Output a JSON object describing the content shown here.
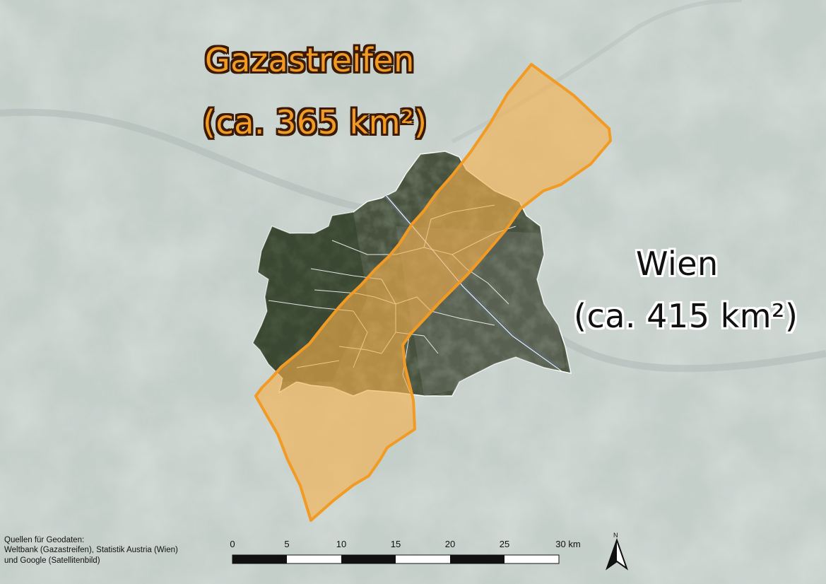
{
  "labels": {
    "gaza_name": "Gazastreifen",
    "gaza_area": "(ca. 365 km²)",
    "wien_name": "Wien",
    "wien_area": "(ca. 415 km²)"
  },
  "sources": {
    "line1": "Quellen für Geodaten:",
    "line2": "Weltbank (Gazastreifen), Statistik Austria (Wien)",
    "line3": "und Google (Satellitenbild)"
  },
  "scale_bar": {
    "ticks": [
      "0",
      "5",
      "10",
      "15",
      "20",
      "25",
      "30 km"
    ]
  },
  "north_arrow": {
    "label": "N"
  },
  "colors": {
    "gaza_fill": "#f5b04a",
    "gaza_outline": "#f29b24",
    "wien_fill": "#3f4a37",
    "district_lines": "#ffffff",
    "background": "#c3cdc9"
  },
  "icons": [
    "north-arrow-icon"
  ]
}
